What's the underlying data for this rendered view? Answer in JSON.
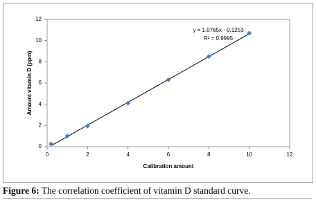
{
  "chart_data": {
    "type": "scatter",
    "x_label": "Calibration amount",
    "y_label": "Amount vitamin D (ppm)",
    "x": [
      0.2,
      1,
      2,
      4,
      6,
      8,
      10
    ],
    "values": [
      0.25,
      1.0,
      1.95,
      4.1,
      6.3,
      8.5,
      10.7
    ],
    "color": "#4a7ebb",
    "xlim": [
      0,
      12
    ],
    "xticks": [
      0,
      2,
      4,
      6,
      8,
      10,
      12
    ],
    "ylim": [
      0,
      12
    ],
    "yticks": [
      0,
      2,
      4,
      6,
      8,
      10,
      12
    ],
    "trendline": {
      "slope": 1.0765,
      "intercept": -0.1253,
      "equation": "y = 1.0765x - 0.1253",
      "r2": "R² = 0.9995"
    }
  },
  "caption": {
    "label": "Figure 6:",
    "text": "The correlation coefficient of vitamin D standard curve."
  }
}
